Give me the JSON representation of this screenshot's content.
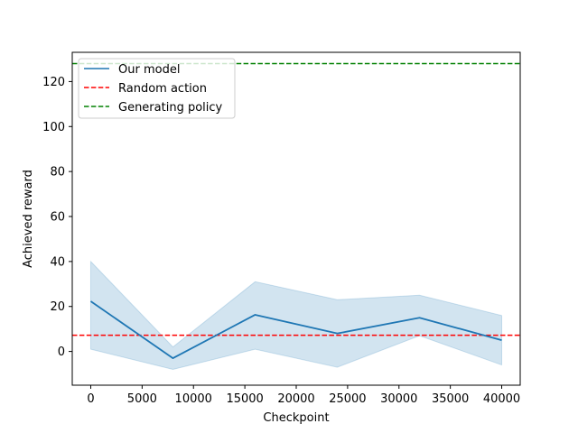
{
  "chart_data": {
    "type": "line",
    "xlabel": "Checkpoint",
    "ylabel": "Achieved reward",
    "xlim": [
      -1800,
      41800
    ],
    "ylim": [
      -15,
      133
    ],
    "x_ticks": [
      0,
      5000,
      10000,
      15000,
      20000,
      25000,
      30000,
      35000,
      40000
    ],
    "y_ticks": [
      0,
      20,
      40,
      60,
      80,
      100,
      120
    ],
    "grid": false,
    "legend": "top-left",
    "series": [
      {
        "name": "Our model",
        "style": "solid",
        "color": "#1f77b4",
        "x": [
          0,
          8000,
          16000,
          24000,
          32000,
          40000
        ],
        "y": [
          22.3,
          -3,
          16.3,
          8,
          15,
          5
        ],
        "band_lower": [
          1,
          -8,
          1,
          -7,
          7,
          -6
        ],
        "band_upper": [
          40,
          2,
          31,
          23,
          25,
          16
        ]
      },
      {
        "name": "Random action",
        "style": "dashed",
        "color": "#ff0000",
        "y_const": 7.2
      },
      {
        "name": "Generating policy",
        "style": "dashed",
        "color": "#008000",
        "y_const": 128
      }
    ]
  }
}
